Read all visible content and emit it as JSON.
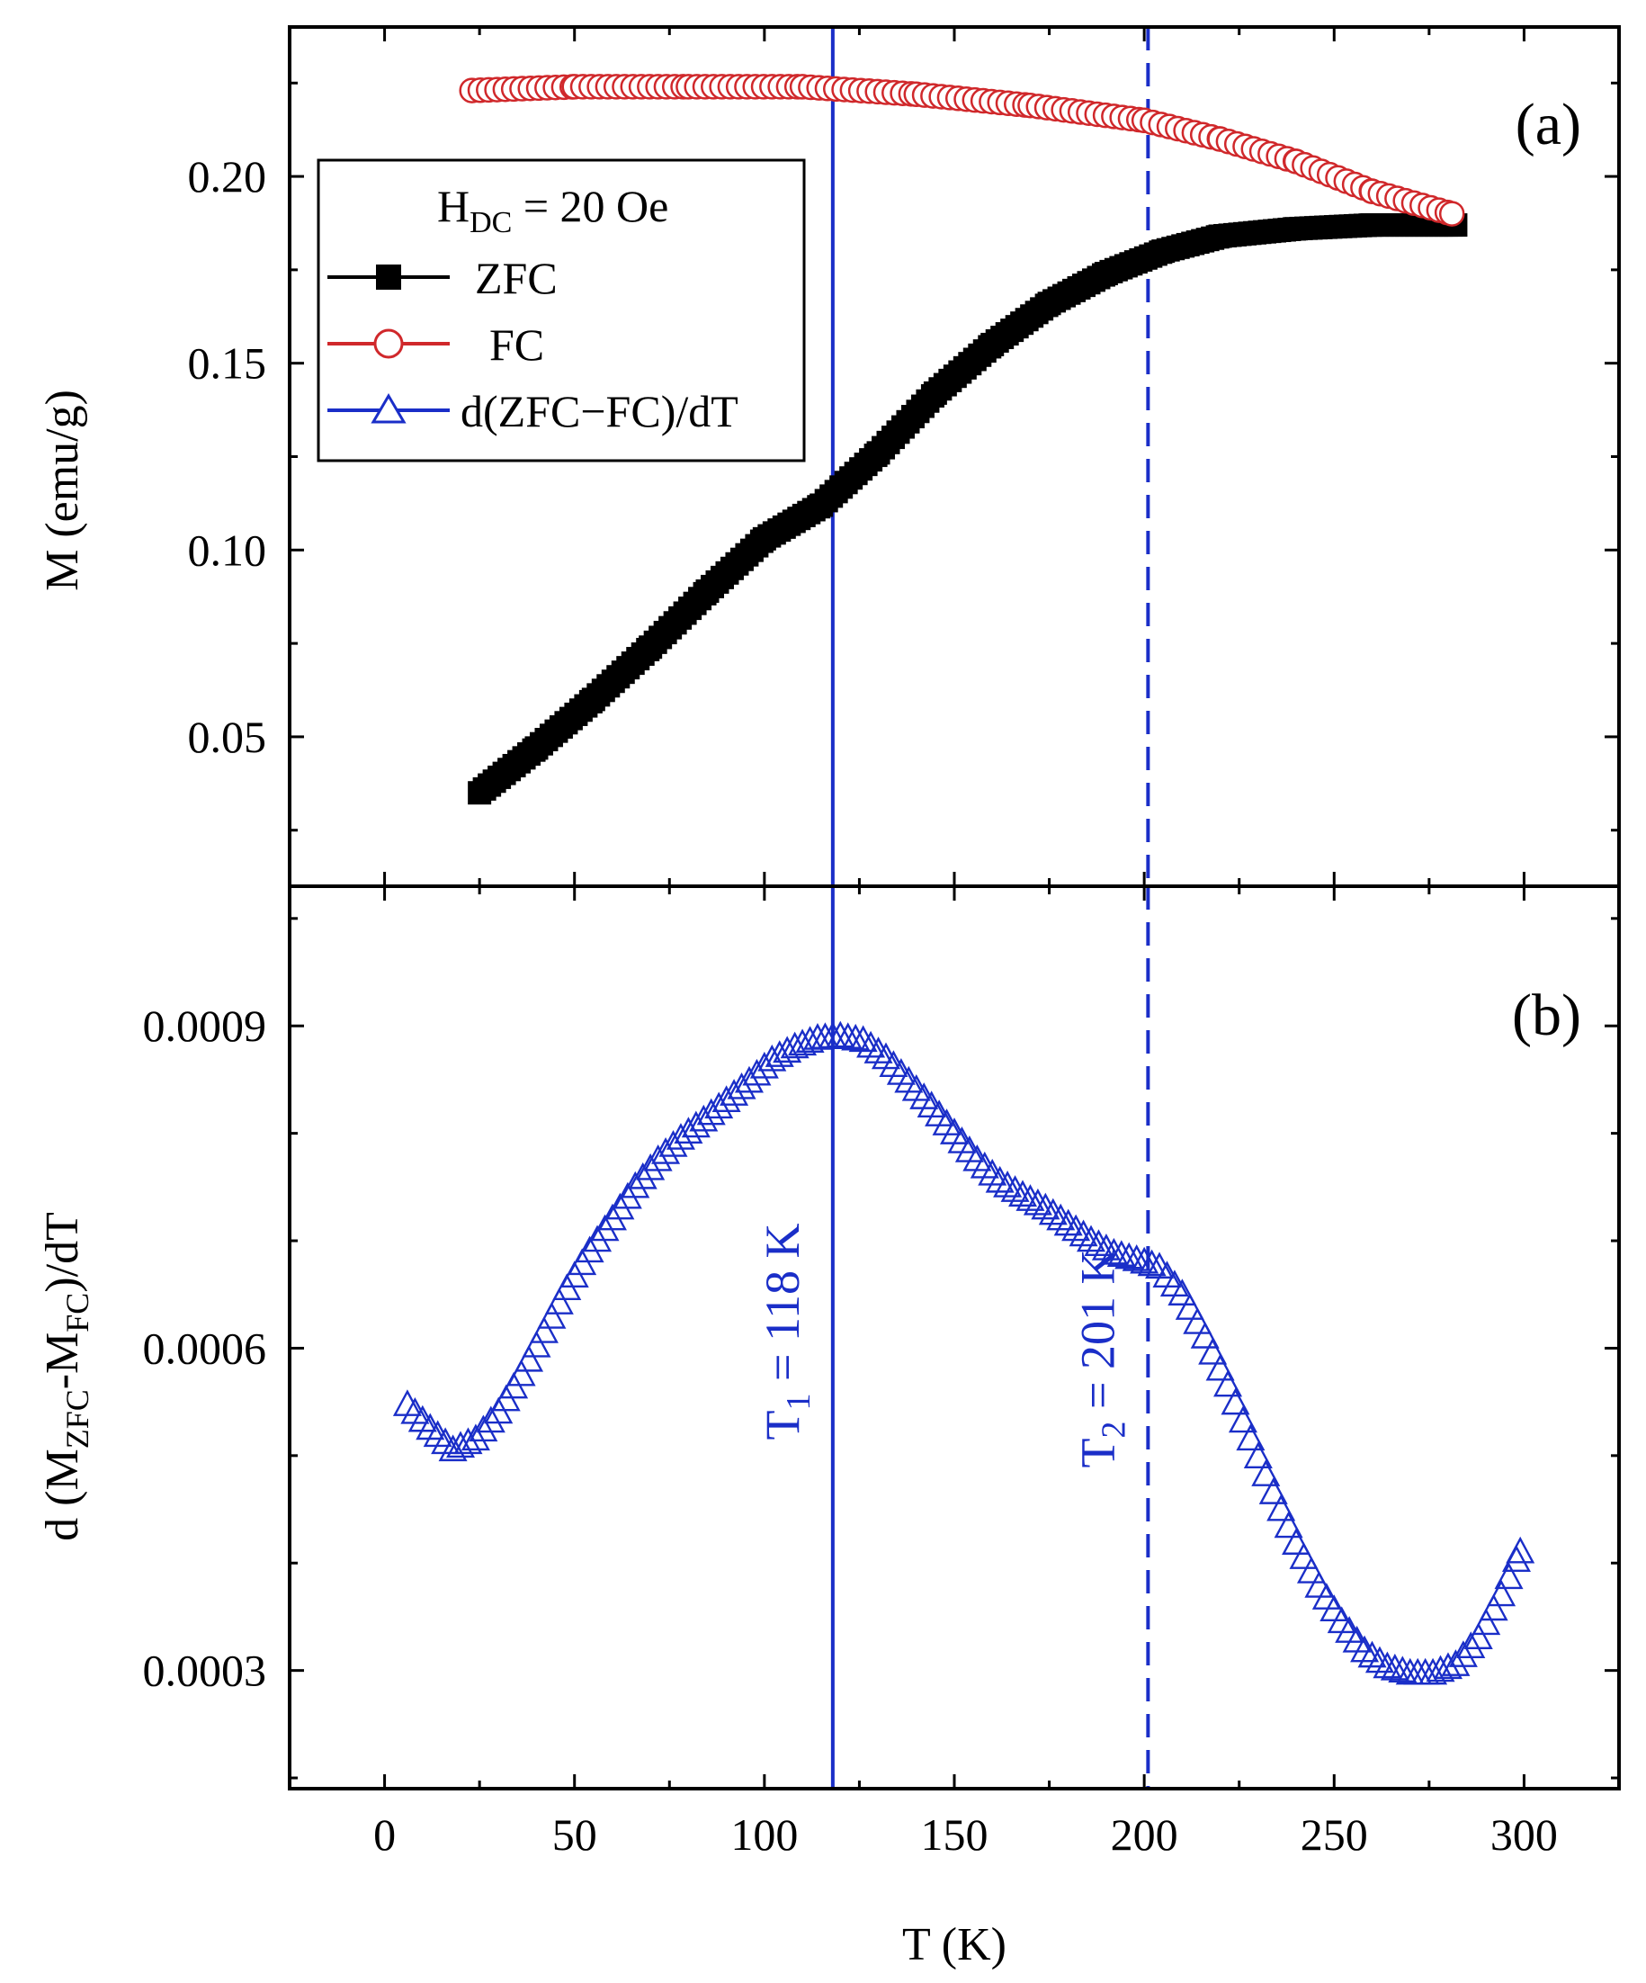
{
  "chart_data": [
    {
      "type": "scatter",
      "panel": "(a)",
      "xlabel": "T (K)",
      "ylabel": "M (emu/g)",
      "xlim": [
        -25,
        325
      ],
      "ylim": [
        0.01,
        0.24
      ],
      "x_ticks": [
        0,
        50,
        100,
        150,
        200,
        250,
        300
      ],
      "y_ticks": [
        0.05,
        0.1,
        0.15,
        0.2
      ],
      "y_tick_labels": [
        "0.05",
        "0.10",
        "0.15",
        "0.20"
      ],
      "legend": {
        "title": "H",
        "title_sub": "DC",
        "title_rest": " = 20 Oe",
        "position": "top-left",
        "entries": [
          {
            "label": "ZFC",
            "color": "#000000",
            "marker": "filled-square"
          },
          {
            "label": "FC",
            "color": "#d0282b",
            "marker": "open-circle"
          },
          {
            "label": "d(ZFC−FC)/dT",
            "color": "#1a2ec8",
            "marker": "open-triangle"
          }
        ]
      },
      "series": [
        {
          "name": "ZFC",
          "color": "#000000",
          "marker": "filled-square",
          "points": [
            [
              25,
              0.035
            ],
            [
              40,
              0.047
            ],
            [
              55,
              0.06
            ],
            [
              70,
              0.074
            ],
            [
              85,
              0.089
            ],
            [
              100,
              0.103
            ],
            [
              115,
              0.112
            ],
            [
              130,
              0.126
            ],
            [
              145,
              0.142
            ],
            [
              160,
              0.155
            ],
            [
              175,
              0.166
            ],
            [
              190,
              0.174
            ],
            [
              205,
              0.18
            ],
            [
              220,
              0.184
            ],
            [
              240,
              0.186
            ],
            [
              260,
              0.187
            ],
            [
              282,
              0.187
            ]
          ]
        },
        {
          "name": "FC",
          "color": "#d0282b",
          "marker": "open-circle",
          "points": [
            [
              23,
              0.223
            ],
            [
              50,
              0.224
            ],
            [
              80,
              0.224
            ],
            [
              110,
              0.224
            ],
            [
              140,
              0.222
            ],
            [
              170,
              0.219
            ],
            [
              200,
              0.215
            ],
            [
              220,
              0.21
            ],
            [
              240,
              0.204
            ],
            [
              260,
              0.196
            ],
            [
              281,
              0.19
            ]
          ]
        }
      ],
      "vlines": [
        {
          "x": 118,
          "style": "solid",
          "color": "#1a2ec8"
        },
        {
          "x": 201,
          "style": "dashed",
          "color": "#1a2ec8"
        }
      ]
    },
    {
      "type": "scatter",
      "panel": "(b)",
      "xlabel": "T (K)",
      "ylabel_parts": {
        "p1": "d (M",
        "s1": "ZFC",
        "p2": "-M",
        "s2": "FC",
        "p3": ")/dT"
      },
      "xlim": [
        -25,
        325
      ],
      "ylim": [
        0.00019,
        0.00103
      ],
      "x_ticks": [
        0,
        50,
        100,
        150,
        200,
        250,
        300
      ],
      "x_tick_labels": [
        "0",
        "50",
        "100",
        "150",
        "200",
        "250",
        "300"
      ],
      "y_ticks": [
        0.0003,
        0.0006,
        0.0009
      ],
      "y_tick_labels": [
        "0.0003",
        "0.0006",
        "0.0009"
      ],
      "series": [
        {
          "name": "d(ZFC−FC)/dT",
          "color": "#1a2ec8",
          "marker": "open-triangle",
          "points": [
            [
              6,
              0.000547
            ],
            [
              12,
              0.000525
            ],
            [
              18,
              0.000505
            ],
            [
              24,
              0.000515
            ],
            [
              30,
              0.00054
            ],
            [
              36,
              0.000575
            ],
            [
              42,
              0.000615
            ],
            [
              48,
              0.000655
            ],
            [
              54,
              0.00069
            ],
            [
              60,
              0.00072
            ],
            [
              66,
              0.00075
            ],
            [
              72,
              0.000775
            ],
            [
              78,
              0.000795
            ],
            [
              84,
              0.000812
            ],
            [
              90,
              0.00083
            ],
            [
              96,
              0.000848
            ],
            [
              102,
              0.000868
            ],
            [
              108,
              0.00088
            ],
            [
              114,
              0.000888
            ],
            [
              120,
              0.00089
            ],
            [
              126,
              0.000886
            ],
            [
              132,
              0.00087
            ],
            [
              138,
              0.000848
            ],
            [
              144,
              0.000825
            ],
            [
              150,
              0.0008
            ],
            [
              156,
              0.000775
            ],
            [
              162,
              0.000755
            ],
            [
              168,
              0.000742
            ],
            [
              174,
              0.00073
            ],
            [
              180,
              0.000715
            ],
            [
              186,
              0.0007
            ],
            [
              192,
              0.000688
            ],
            [
              198,
              0.000682
            ],
            [
              204,
              0.000675
            ],
            [
              210,
              0.00065
            ],
            [
              216,
              0.00061
            ],
            [
              222,
              0.000565
            ],
            [
              228,
              0.000515
            ],
            [
              234,
              0.000465
            ],
            [
              240,
              0.000418
            ],
            [
              246,
              0.000378
            ],
            [
              252,
              0.000345
            ],
            [
              258,
              0.000318
            ],
            [
              264,
              0.000303
            ],
            [
              270,
              0.000297
            ],
            [
              276,
              0.000297
            ],
            [
              282,
              0.000305
            ],
            [
              288,
              0.00033
            ],
            [
              294,
              0.00037
            ],
            [
              299,
              0.00041
            ]
          ]
        }
      ],
      "vlines": [
        {
          "x": 118,
          "style": "solid",
          "color": "#1a2ec8"
        },
        {
          "x": 201,
          "style": "dashed",
          "color": "#1a2ec8"
        }
      ],
      "annotations": [
        {
          "base": "T",
          "sub": "1",
          "rest": " = 118 K",
          "x": 118,
          "color": "#1a2ec8"
        },
        {
          "base": "T",
          "sub": "2",
          "rest": " = 201 K",
          "x": 201,
          "color": "#1a2ec8"
        }
      ]
    }
  ]
}
